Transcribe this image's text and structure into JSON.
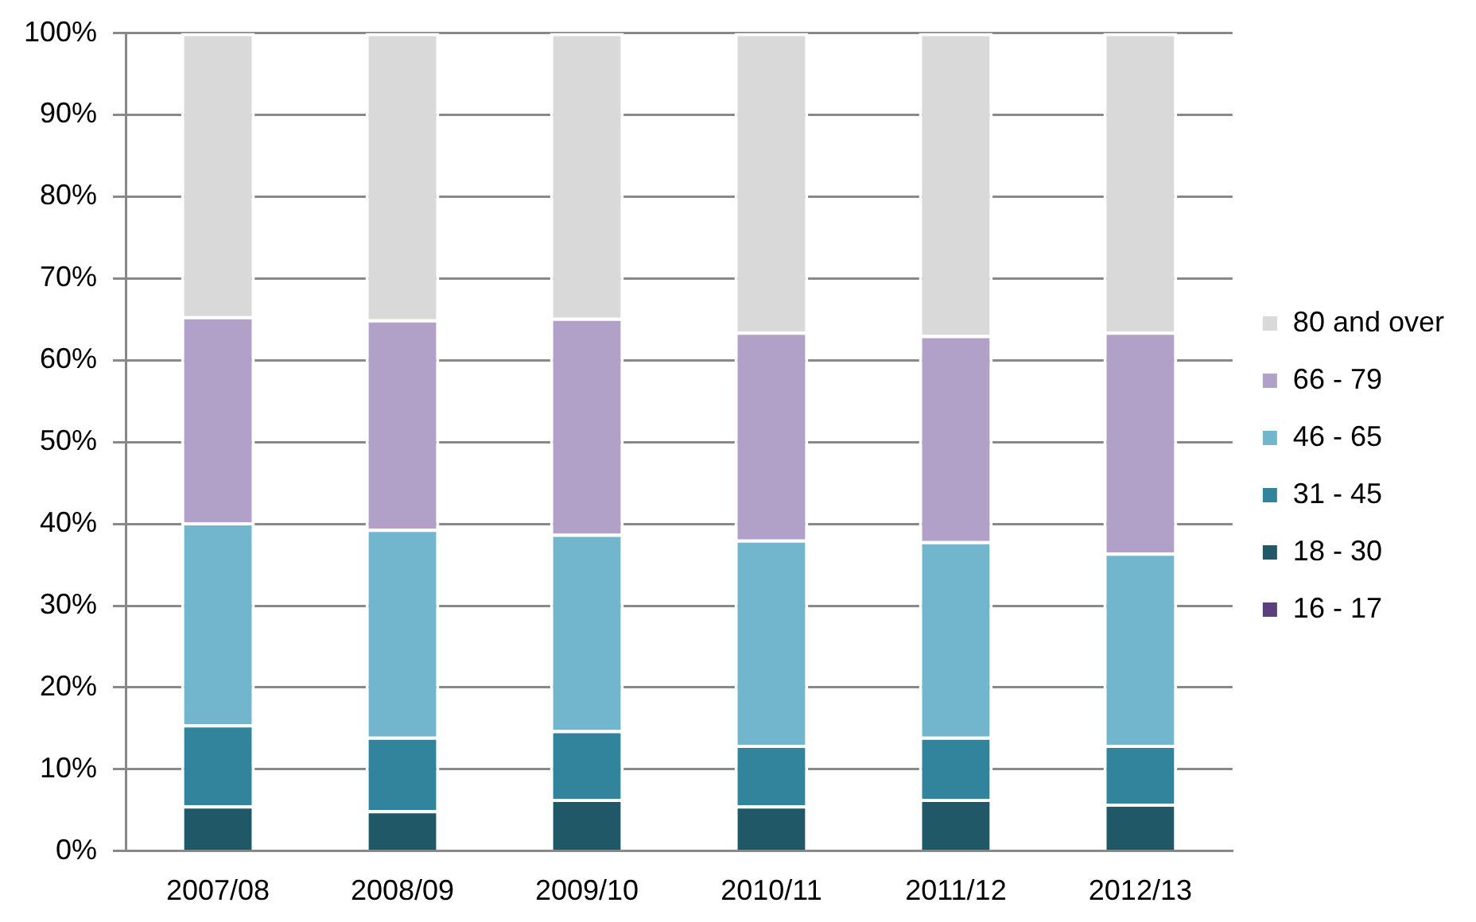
{
  "chart_data": {
    "type": "bar",
    "stacked": true,
    "categories": [
      "2007/08",
      "2008/09",
      "2009/10",
      "2010/11",
      "2011/12",
      "2012/13"
    ],
    "series": [
      {
        "name": "16 - 17",
        "color": "#5b3f7d",
        "values": [
          0,
          0,
          0,
          0,
          0,
          0
        ]
      },
      {
        "name": "18 - 30",
        "color": "#215868",
        "values": [
          5.6,
          5.0,
          6.4,
          5.6,
          6.4,
          5.8
        ]
      },
      {
        "name": "31 - 45",
        "color": "#31849b",
        "values": [
          9.9,
          9.0,
          8.4,
          7.4,
          7.6,
          7.2
        ]
      },
      {
        "name": "46 - 65",
        "color": "#72b6cd",
        "values": [
          24.7,
          25.4,
          24.0,
          25.1,
          23.9,
          23.5
        ]
      },
      {
        "name": "66 - 79",
        "color": "#b1a0c7",
        "values": [
          25.2,
          25.6,
          26.4,
          25.4,
          25.2,
          27.0
        ]
      },
      {
        "name": "80 and over",
        "color": "#d9d9d9",
        "values": [
          34.6,
          35.0,
          34.8,
          36.5,
          36.9,
          36.5
        ]
      }
    ],
    "ylim": [
      0,
      100
    ],
    "yticks": [
      {
        "value": 0,
        "label": "0%"
      },
      {
        "value": 10,
        "label": "10%"
      },
      {
        "value": 20,
        "label": "20%"
      },
      {
        "value": 30,
        "label": "30%"
      },
      {
        "value": 40,
        "label": "40%"
      },
      {
        "value": 50,
        "label": "50%"
      },
      {
        "value": 60,
        "label": "60%"
      },
      {
        "value": 70,
        "label": "70%"
      },
      {
        "value": 80,
        "label": "80%"
      },
      {
        "value": 90,
        "label": "90%"
      },
      {
        "value": 100,
        "label": "100%"
      }
    ],
    "grid": "y",
    "legend": "right"
  }
}
